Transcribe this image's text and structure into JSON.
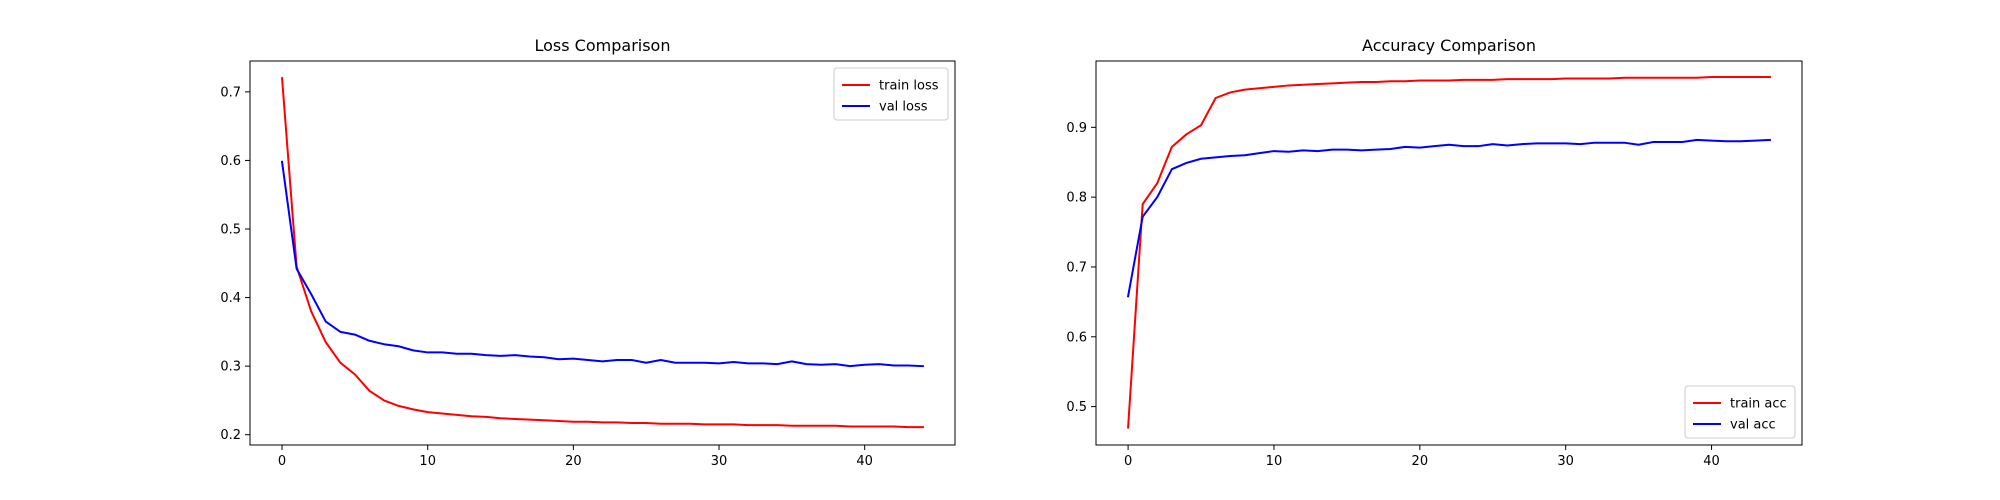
{
  "chart_data": [
    {
      "type": "line",
      "title": "Loss Comparison",
      "xlabel": "",
      "ylabel": "",
      "xlim": [
        -2.2,
        46.2
      ],
      "ylim": [
        0.185,
        0.745
      ],
      "xticks": [
        0,
        10,
        20,
        30,
        40
      ],
      "yticks": [
        0.2,
        0.3,
        0.4,
        0.5,
        0.6,
        0.7
      ],
      "grid": false,
      "legend_position": "upper right",
      "series": [
        {
          "name": "train loss",
          "color": "#ff0000",
          "x": [
            0,
            1,
            2,
            3,
            4,
            5,
            6,
            7,
            8,
            9,
            10,
            11,
            12,
            13,
            14,
            15,
            16,
            17,
            18,
            19,
            20,
            21,
            22,
            23,
            24,
            25,
            26,
            27,
            28,
            29,
            30,
            31,
            32,
            33,
            34,
            35,
            36,
            37,
            38,
            39,
            40,
            41,
            42,
            43,
            44
          ],
          "values": [
            0.72,
            0.445,
            0.38,
            0.335,
            0.305,
            0.288,
            0.264,
            0.25,
            0.242,
            0.237,
            0.233,
            0.231,
            0.229,
            0.227,
            0.226,
            0.224,
            0.223,
            0.222,
            0.221,
            0.22,
            0.219,
            0.219,
            0.218,
            0.218,
            0.217,
            0.217,
            0.216,
            0.216,
            0.216,
            0.215,
            0.215,
            0.215,
            0.214,
            0.214,
            0.214,
            0.213,
            0.213,
            0.213,
            0.213,
            0.212,
            0.212,
            0.212,
            0.212,
            0.211,
            0.211
          ]
        },
        {
          "name": "val loss",
          "color": "#0000ff",
          "x": [
            0,
            1,
            2,
            3,
            4,
            5,
            6,
            7,
            8,
            9,
            10,
            11,
            12,
            13,
            14,
            15,
            16,
            17,
            18,
            19,
            20,
            21,
            22,
            23,
            24,
            25,
            26,
            27,
            28,
            29,
            30,
            31,
            32,
            33,
            34,
            35,
            36,
            37,
            38,
            39,
            40,
            41,
            42,
            43,
            44
          ],
          "values": [
            0.598,
            0.442,
            0.405,
            0.365,
            0.35,
            0.346,
            0.337,
            0.332,
            0.329,
            0.323,
            0.32,
            0.32,
            0.318,
            0.318,
            0.316,
            0.315,
            0.316,
            0.314,
            0.313,
            0.31,
            0.311,
            0.309,
            0.307,
            0.309,
            0.309,
            0.305,
            0.309,
            0.305,
            0.305,
            0.305,
            0.304,
            0.306,
            0.304,
            0.304,
            0.303,
            0.307,
            0.303,
            0.302,
            0.303,
            0.3,
            0.302,
            0.303,
            0.301,
            0.301,
            0.3
          ]
        }
      ]
    },
    {
      "type": "line",
      "title": "Accuracy Comparison",
      "xlabel": "",
      "ylabel": "",
      "xlim": [
        -2.2,
        46.2
      ],
      "ylim": [
        0.445,
        0.995
      ],
      "xticks": [
        0,
        10,
        20,
        30,
        40
      ],
      "yticks": [
        0.5,
        0.6,
        0.7,
        0.8,
        0.9
      ],
      "grid": false,
      "legend_position": "lower right",
      "series": [
        {
          "name": "train acc",
          "color": "#ff0000",
          "x": [
            0,
            1,
            2,
            3,
            4,
            5,
            6,
            7,
            8,
            9,
            10,
            11,
            12,
            13,
            14,
            15,
            16,
            17,
            18,
            19,
            20,
            21,
            22,
            23,
            24,
            25,
            26,
            27,
            28,
            29,
            30,
            31,
            32,
            33,
            34,
            35,
            36,
            37,
            38,
            39,
            40,
            41,
            42,
            43,
            44
          ],
          "values": [
            0.47,
            0.79,
            0.82,
            0.872,
            0.89,
            0.903,
            0.942,
            0.95,
            0.954,
            0.956,
            0.958,
            0.96,
            0.961,
            0.962,
            0.963,
            0.964,
            0.965,
            0.965,
            0.966,
            0.966,
            0.967,
            0.967,
            0.967,
            0.968,
            0.968,
            0.968,
            0.969,
            0.969,
            0.969,
            0.969,
            0.97,
            0.97,
            0.97,
            0.97,
            0.971,
            0.971,
            0.971,
            0.971,
            0.971,
            0.971,
            0.972,
            0.972,
            0.972,
            0.972,
            0.972
          ]
        },
        {
          "name": "val acc",
          "color": "#0000ff",
          "x": [
            0,
            1,
            2,
            3,
            4,
            5,
            6,
            7,
            8,
            9,
            10,
            11,
            12,
            13,
            14,
            15,
            16,
            17,
            18,
            19,
            20,
            21,
            22,
            23,
            24,
            25,
            26,
            27,
            28,
            29,
            30,
            31,
            32,
            33,
            34,
            35,
            36,
            37,
            38,
            39,
            40,
            41,
            42,
            43,
            44
          ],
          "values": [
            0.658,
            0.772,
            0.8,
            0.84,
            0.849,
            0.855,
            0.857,
            0.859,
            0.86,
            0.863,
            0.866,
            0.865,
            0.867,
            0.866,
            0.868,
            0.868,
            0.867,
            0.868,
            0.869,
            0.872,
            0.871,
            0.873,
            0.875,
            0.873,
            0.873,
            0.876,
            0.874,
            0.876,
            0.877,
            0.877,
            0.877,
            0.876,
            0.878,
            0.878,
            0.878,
            0.875,
            0.879,
            0.879,
            0.879,
            0.882,
            0.881,
            0.88,
            0.88,
            0.881,
            0.882
          ]
        }
      ]
    }
  ]
}
